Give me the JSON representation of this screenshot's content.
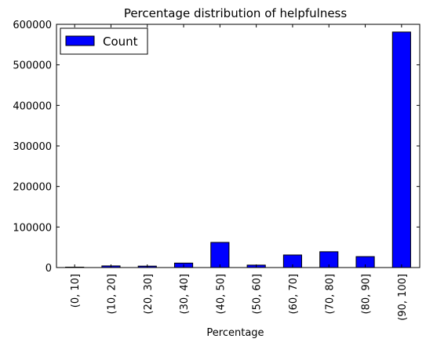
{
  "chart_data": {
    "type": "bar",
    "title": "Percentage distribution of helpfulness",
    "xlabel": "Percentage",
    "ylabel": "",
    "categories": [
      "(0, 10]",
      "(10, 20]",
      "(20, 30]",
      "(30, 40]",
      "(40, 50]",
      "(50, 60]",
      "(60, 70]",
      "(70, 80]",
      "(80, 90]",
      "(90, 100]"
    ],
    "series": [
      {
        "name": "Count",
        "color": "#0000ff",
        "values": [
          1000,
          4000,
          3500,
          11000,
          62000,
          6000,
          31000,
          39000,
          27000,
          581000
        ]
      }
    ],
    "ylim": [
      0,
      600000
    ],
    "yticks": [
      0,
      100000,
      200000,
      300000,
      400000,
      500000,
      600000
    ],
    "grid": false,
    "legend": "top-left"
  }
}
